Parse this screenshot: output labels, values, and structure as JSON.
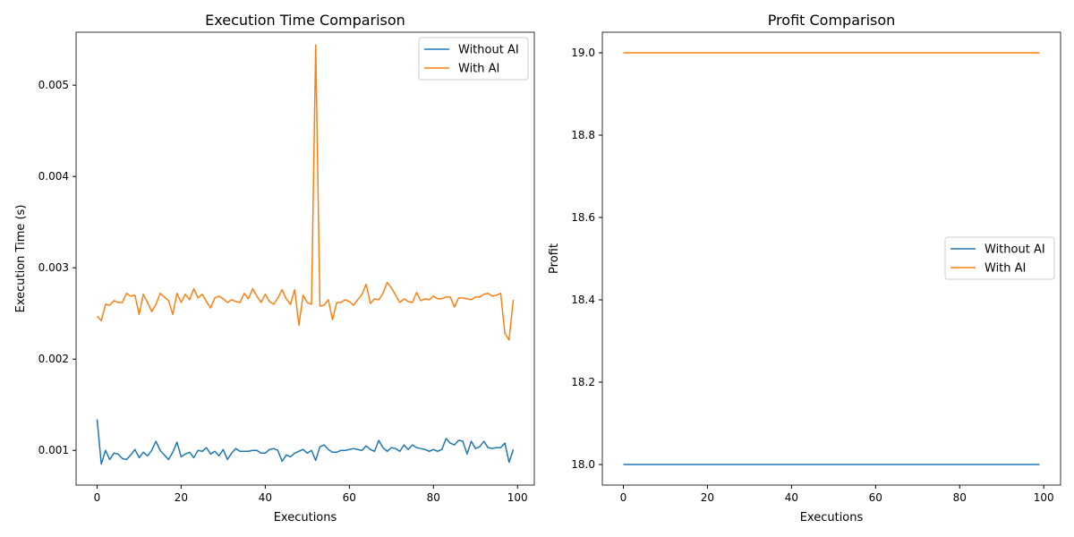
{
  "chart_data": [
    {
      "type": "line",
      "title": "Execution Time Comparison",
      "xlabel": "Executions",
      "ylabel": "Execution Time (s)",
      "xlim": [
        -5,
        104
      ],
      "ylim": [
        0.00062,
        0.00558
      ],
      "xticks": [
        0,
        20,
        40,
        60,
        80,
        100
      ],
      "yticks": [
        0.001,
        0.002,
        0.003,
        0.004,
        0.005
      ],
      "ytick_labels": [
        "0.001",
        "0.002",
        "0.003",
        "0.004",
        "0.005"
      ],
      "legend": "upper right",
      "series": [
        {
          "name": "Without AI",
          "color": "#1f77b4",
          "values": [
            0.00134,
            0.00085,
            0.001,
            0.0009,
            0.00097,
            0.00096,
            0.00091,
            0.0009,
            0.00095,
            0.00101,
            0.00092,
            0.00098,
            0.00094,
            0.001,
            0.0011,
            0.001,
            0.00095,
            0.0009,
            0.00098,
            0.00109,
            0.00093,
            0.00096,
            0.00098,
            0.00092,
            0.001,
            0.00099,
            0.00103,
            0.00096,
            0.00099,
            0.00094,
            0.00101,
            0.0009,
            0.00097,
            0.00102,
            0.00099,
            0.00099,
            0.00099,
            0.001,
            0.001,
            0.00097,
            0.00097,
            0.00101,
            0.00102,
            0.001,
            0.00088,
            0.00095,
            0.00093,
            0.00097,
            0.00099,
            0.00101,
            0.00097,
            0.001,
            0.00089,
            0.00104,
            0.00106,
            0.00101,
            0.00098,
            0.00098,
            0.001,
            0.001,
            0.00101,
            0.00102,
            0.00101,
            0.001,
            0.00105,
            0.00101,
            0.00099,
            0.00111,
            0.00103,
            0.00099,
            0.00103,
            0.00102,
            0.00099,
            0.00106,
            0.00101,
            0.00106,
            0.00103,
            0.00102,
            0.00101,
            0.00099,
            0.00101,
            0.00099,
            0.00101,
            0.00113,
            0.00108,
            0.00106,
            0.00111,
            0.0011,
            0.00096,
            0.0011,
            0.00102,
            0.00104,
            0.0011,
            0.00103,
            0.00102,
            0.00103,
            0.00103,
            0.00108,
            0.00087,
            0.00101
          ]
        },
        {
          "name": "With AI",
          "color": "#ff7f0e",
          "values": [
            0.00247,
            0.00242,
            0.0026,
            0.00259,
            0.00264,
            0.00262,
            0.00262,
            0.00272,
            0.00269,
            0.0027,
            0.00249,
            0.00271,
            0.00262,
            0.00252,
            0.0026,
            0.00272,
            0.00268,
            0.00264,
            0.00249,
            0.00272,
            0.00262,
            0.00271,
            0.00265,
            0.00277,
            0.00267,
            0.00271,
            0.00263,
            0.00256,
            0.00267,
            0.00269,
            0.00266,
            0.00262,
            0.00265,
            0.00263,
            0.00262,
            0.00272,
            0.00266,
            0.00277,
            0.00269,
            0.00262,
            0.00271,
            0.00263,
            0.0026,
            0.00267,
            0.00276,
            0.00266,
            0.0026,
            0.00276,
            0.00237,
            0.0027,
            0.00262,
            0.0026,
            0.00544,
            0.00258,
            0.00259,
            0.00265,
            0.00243,
            0.00262,
            0.00262,
            0.00265,
            0.00263,
            0.00259,
            0.00265,
            0.00271,
            0.00282,
            0.00261,
            0.00266,
            0.00265,
            0.00272,
            0.00284,
            0.00278,
            0.0027,
            0.00262,
            0.00266,
            0.00263,
            0.00262,
            0.00273,
            0.00264,
            0.00266,
            0.00265,
            0.00269,
            0.00266,
            0.00266,
            0.00268,
            0.00268,
            0.00257,
            0.00267,
            0.00267,
            0.00266,
            0.00265,
            0.00268,
            0.00268,
            0.00271,
            0.00272,
            0.00269,
            0.0027,
            0.00272,
            0.00228,
            0.00221,
            0.00265
          ]
        }
      ]
    },
    {
      "type": "line",
      "title": "Profit Comparison",
      "xlabel": "Executions",
      "ylabel": "Profit",
      "xlim": [
        -5,
        104
      ],
      "ylim": [
        17.95,
        19.05
      ],
      "xticks": [
        0,
        20,
        40,
        60,
        80,
        100
      ],
      "yticks": [
        18.0,
        18.2,
        18.4,
        18.6,
        18.8,
        19.0
      ],
      "ytick_labels": [
        "18.0",
        "18.2",
        "18.4",
        "18.6",
        "18.8",
        "19.0"
      ],
      "legend": "center right",
      "series": [
        {
          "name": "Without AI",
          "color": "#1f77b4",
          "constant": 18.0,
          "count": 100
        },
        {
          "name": "With AI",
          "color": "#ff7f0e",
          "constant": 19.0,
          "count": 100
        }
      ]
    }
  ]
}
